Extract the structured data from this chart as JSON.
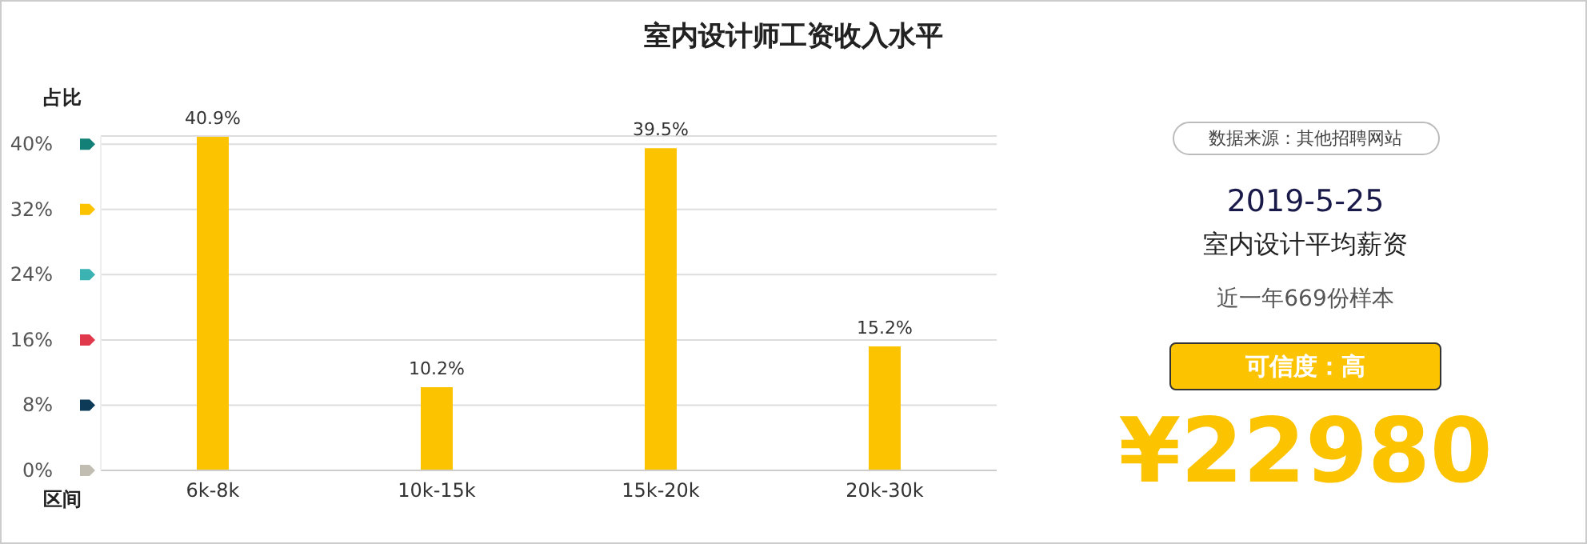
{
  "chart_data": [
    {
      "type": "bar",
      "title": "室内设计师工资收入水平",
      "ylabel": "占比",
      "xlabel": "区间",
      "categories": [
        "6k-8k",
        "10k-15k",
        "15k-20k",
        "20k-30k"
      ],
      "values": [
        40.9,
        10.2,
        39.5,
        15.2
      ],
      "value_labels": [
        "40.9%",
        "10.2%",
        "39.5%",
        "15.2%"
      ],
      "color": "#fcc300",
      "ylim": [
        0,
        41
      ],
      "yticks": [
        {
          "value": 0,
          "label": "0%"
        },
        {
          "value": 8,
          "label": "8%"
        },
        {
          "value": 16,
          "label": "16%"
        },
        {
          "value": 24,
          "label": "24%"
        },
        {
          "value": 32,
          "label": "32%"
        },
        {
          "value": 40,
          "label": "40%"
        }
      ],
      "grid": "y",
      "legend": false
    },
    {
      "type": "other",
      "annotations": [
        "数据来源：其他招聘网站",
        "2019-5-25",
        "室内设计平均薪资",
        "近一年669份样本",
        "可信度：高",
        "¥22980"
      ]
    }
  ]
}
